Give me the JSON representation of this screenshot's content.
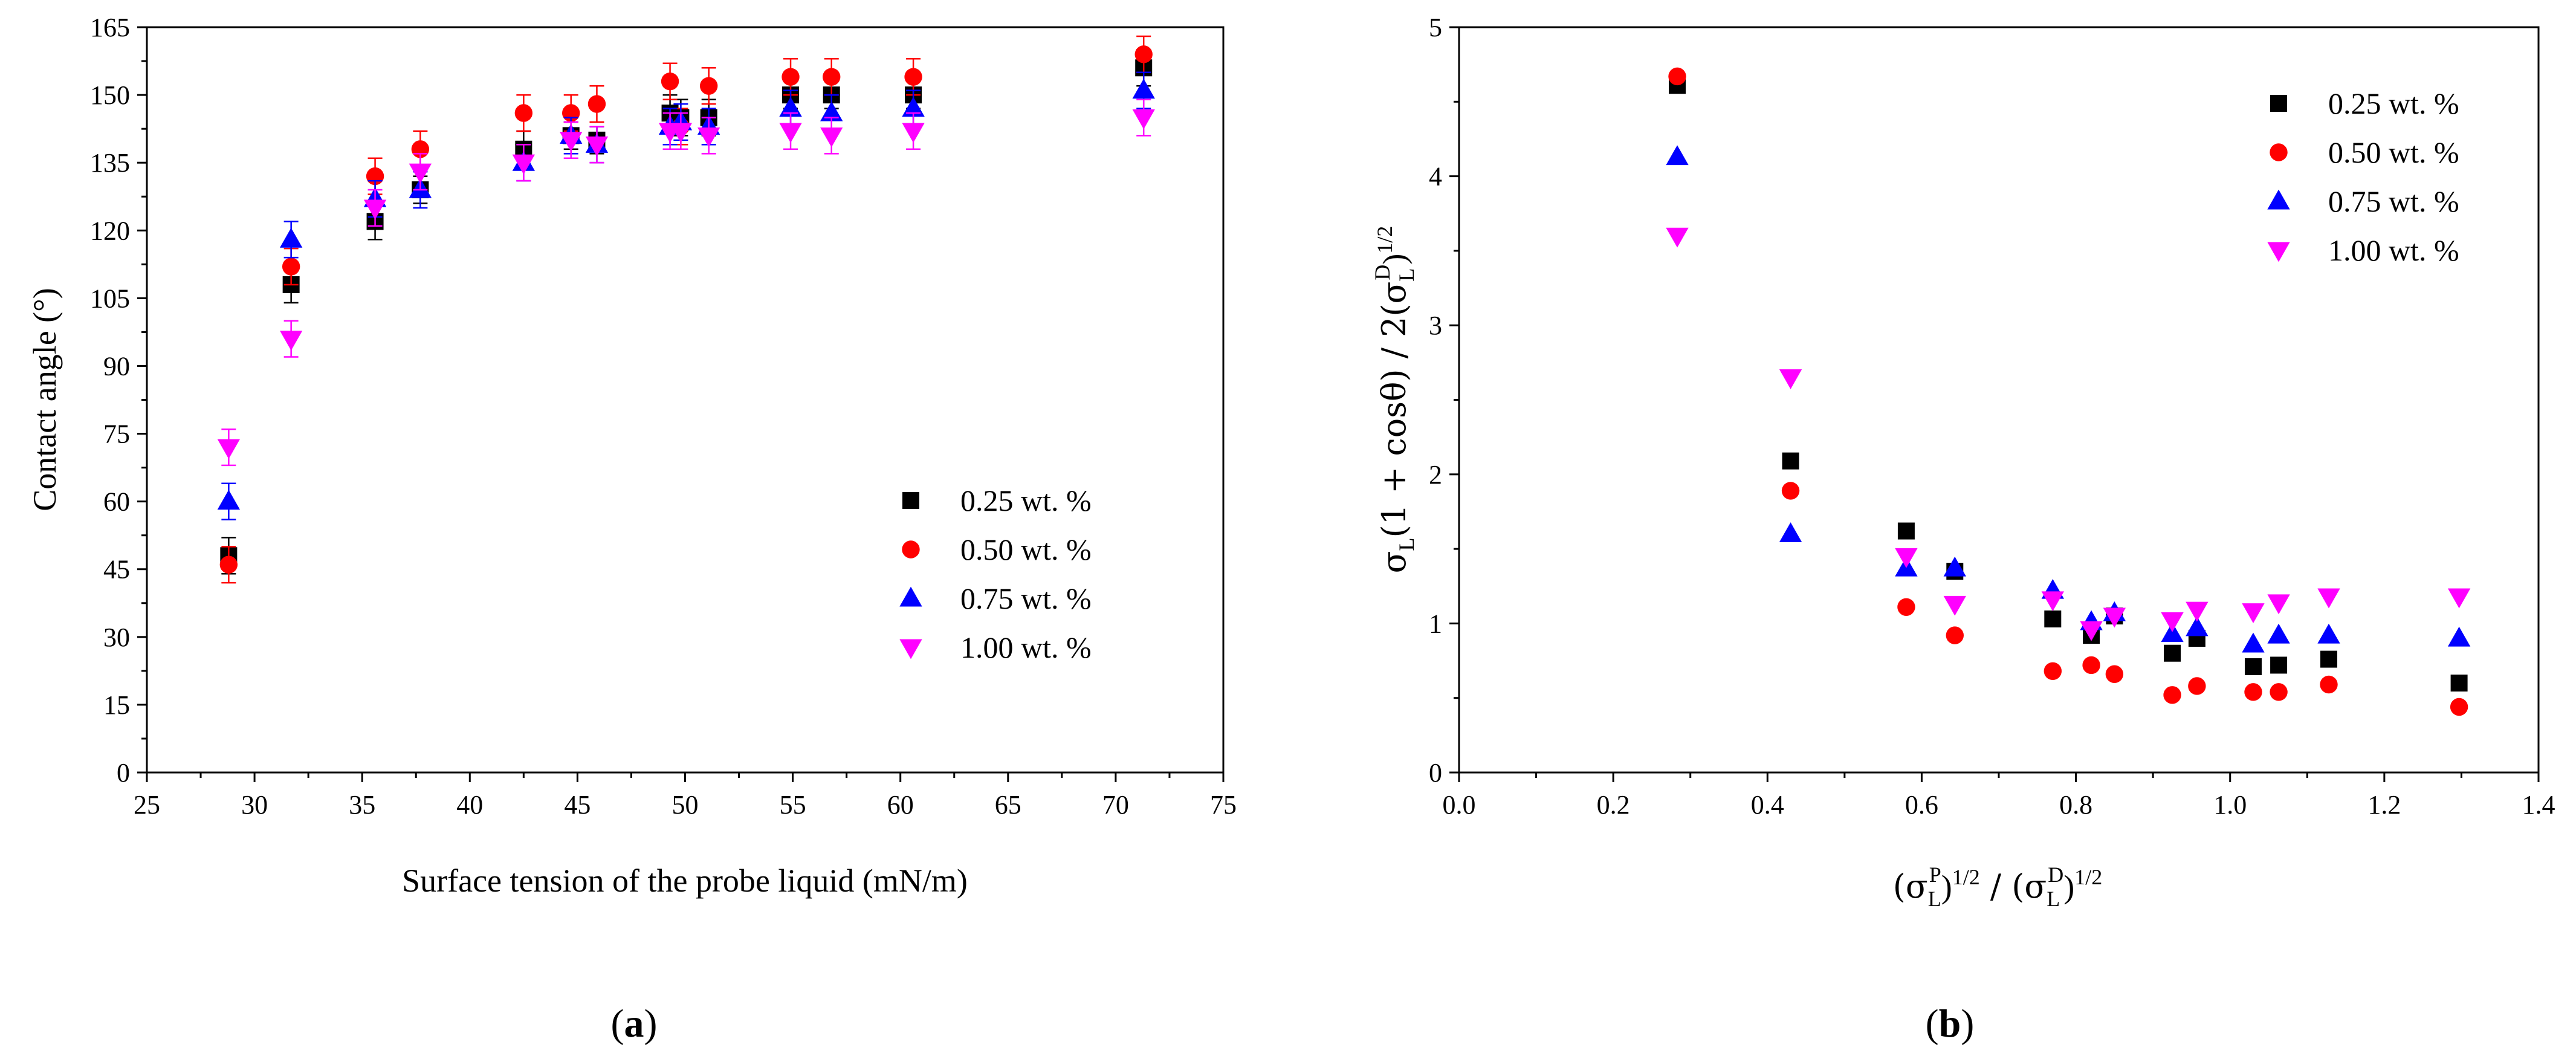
{
  "figure": {
    "caption_a": {
      "open": "(",
      "letter": "a",
      "close": ")"
    },
    "caption_b": {
      "open": "(",
      "letter": "b",
      "close": ")"
    }
  },
  "series_styles": [
    {
      "name": "0.25 wt. %",
      "color": "#000000",
      "marker": "square"
    },
    {
      "name": "0.50 wt. %",
      "color": "#ff0000",
      "marker": "circle"
    },
    {
      "name": "0.75 wt. %",
      "color": "#0000ff",
      "marker": "triangle-up"
    },
    {
      "name": "1.00 wt. %",
      "color": "#ff00ff",
      "marker": "triangle-down"
    }
  ],
  "chart_data": [
    {
      "id": "a",
      "type": "scatter",
      "title": "",
      "xlabel": "Surface tension of the probe liquid (mN/m)",
      "ylabel": "Contact angle (°)",
      "xlim": [
        25,
        75
      ],
      "ylim": [
        0,
        165
      ],
      "xticks": [
        25,
        30,
        35,
        40,
        45,
        50,
        55,
        60,
        65,
        70,
        75
      ],
      "yticks": [
        0,
        15,
        30,
        45,
        60,
        75,
        90,
        105,
        120,
        135,
        150,
        165
      ],
      "legend_position": "center-right",
      "x": [
        28.8,
        31.7,
        35.6,
        37.7,
        42.5,
        44.7,
        45.9,
        49.3,
        49.8,
        51.1,
        54.9,
        56.8,
        60.6,
        71.3
      ],
      "series": [
        {
          "name": "0.25 wt. %",
          "values": [
            48,
            108,
            122,
            129,
            138,
            141,
            140,
            146,
            145,
            145,
            150,
            150,
            150,
            156
          ],
          "error": [
            4,
            4,
            4,
            3,
            4,
            3,
            3,
            4,
            4,
            4,
            3,
            3,
            3,
            4
          ]
        },
        {
          "name": "0.50 wt. %",
          "values": [
            46,
            112,
            132,
            138,
            146,
            146,
            148,
            153,
            143,
            152,
            154,
            154,
            154,
            159
          ],
          "error": [
            4,
            4,
            4,
            4,
            4,
            4,
            4,
            4,
            4,
            4,
            4,
            4,
            4,
            4
          ]
        },
        {
          "name": "0.75 wt. %",
          "values": [
            60,
            118,
            127,
            129,
            135,
            141,
            139,
            143,
            144,
            143,
            147,
            146,
            147,
            151
          ],
          "error": [
            4,
            4,
            4,
            4,
            4,
            4,
            4,
            4,
            4,
            4,
            4,
            4,
            4,
            4
          ]
        },
        {
          "name": "1.00 wt. %",
          "values": [
            72,
            96,
            125,
            133,
            135,
            140,
            139,
            142,
            142,
            141,
            142,
            141,
            142,
            145
          ],
          "error": [
            4,
            4,
            4,
            4,
            4,
            4,
            4,
            4,
            4,
            4,
            4,
            4,
            4,
            4
          ]
        }
      ]
    },
    {
      "id": "b",
      "type": "scatter",
      "title": "",
      "xlabel_parts": {
        "open": "(σ",
        "sub": "L",
        "sup_p": "P",
        "close_p": ")",
        "exp": "1/2",
        "slash": " / (σ",
        "sup_d": "D",
        "close_d": ")"
      },
      "ylabel_parts": {
        "sigma": "σ",
        "sub": "L",
        "mid": "(1 + cosθ) / 2(σ",
        "sup_d": "D",
        "close": ")",
        "exp": "1/2"
      },
      "xlim": [
        0.0,
        1.4
      ],
      "ylim": [
        0,
        5
      ],
      "xticks": [
        "0.0",
        "0.2",
        "0.4",
        "0.6",
        "0.8",
        "1.0",
        "1.2",
        "1.4"
      ],
      "yticks": [
        "0",
        "1",
        "2",
        "3",
        "4",
        "5"
      ],
      "legend_position": "top-right",
      "x": [
        0.283,
        0.43,
        0.58,
        0.643,
        0.77,
        0.82,
        0.85,
        0.925,
        0.957,
        1.03,
        1.063,
        1.128,
        1.297
      ],
      "series": [
        {
          "name": "0.25 wt. %",
          "values": [
            4.61,
            2.09,
            1.62,
            1.35,
            1.03,
            0.92,
            1.05,
            0.8,
            0.9,
            0.71,
            0.72,
            0.76,
            0.6
          ]
        },
        {
          "name": "0.50 wt. %",
          "values": [
            4.67,
            1.89,
            1.11,
            0.92,
            0.68,
            0.72,
            0.66,
            0.52,
            0.58,
            0.54,
            0.54,
            0.59,
            0.44
          ]
        },
        {
          "name": "0.75 wt. %",
          "values": [
            4.13,
            1.6,
            1.37,
            1.37,
            1.22,
            1.01,
            1.07,
            0.93,
            0.97,
            0.86,
            0.92,
            0.92,
            0.9
          ]
        },
        {
          "name": "1.00 wt. %",
          "values": [
            3.6,
            2.65,
            1.45,
            1.13,
            1.16,
            0.96,
            1.05,
            1.02,
            1.09,
            1.08,
            1.14,
            1.18,
            1.18
          ]
        }
      ]
    }
  ]
}
